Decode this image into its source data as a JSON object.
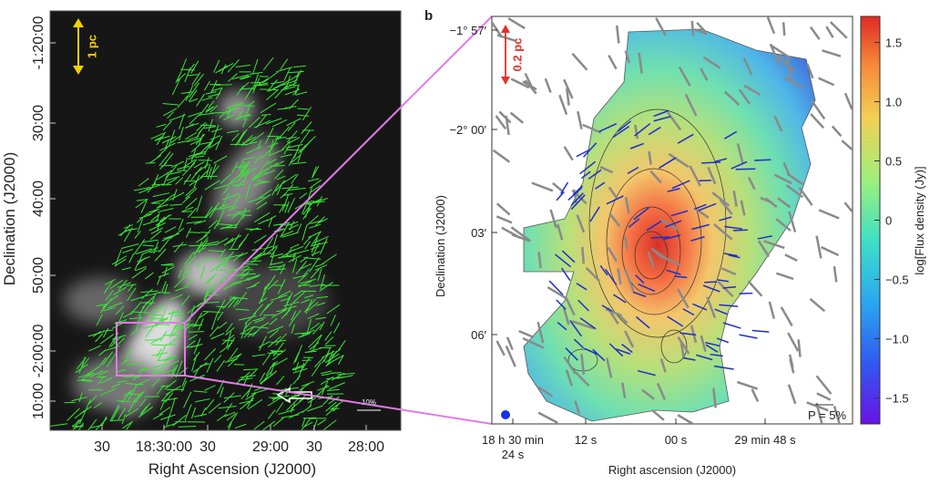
{
  "left_panel": {
    "scale_bar": "1 pc",
    "vector_scale": "10%",
    "xlabel": "Right Ascension (J2000)",
    "ylabel": "Declination (J2000)",
    "xticks": [
      "30",
      "18:30:00",
      "30",
      "29:00",
      "30",
      "28:00"
    ],
    "yticks": [
      "-1:20:00",
      "30:00",
      "40:00",
      "50:00",
      "-2:00:00",
      "10:00"
    ]
  },
  "right_panel": {
    "panel_label": "b",
    "scale_bar": "0.2 pc",
    "vector_scale": "P = 5%",
    "xlabel": "Right ascension (J2000)",
    "ylabel": "Declination (J2000)",
    "xticks": [
      [
        "18 h 30 min",
        "24 s"
      ],
      [
        "12 s"
      ],
      [
        "00 s"
      ],
      [
        "29 min 48 s"
      ]
    ],
    "yticks": [
      "−1° 57′",
      "−2° 00′",
      "03′",
      "06′"
    ]
  },
  "colorbar": {
    "label": "log[Flux density (Jy)]",
    "lim": [
      -1.72,
      1.72
    ],
    "ticks": [
      1.5,
      {
        "value": 1,
        "label": "1.0"
      },
      0.5,
      0,
      {
        "value": -0.5,
        "label": "−0.5"
      },
      {
        "value": -1,
        "label": "−1.0"
      },
      {
        "value": -1.5,
        "label": "−1.5"
      }
    ]
  }
}
